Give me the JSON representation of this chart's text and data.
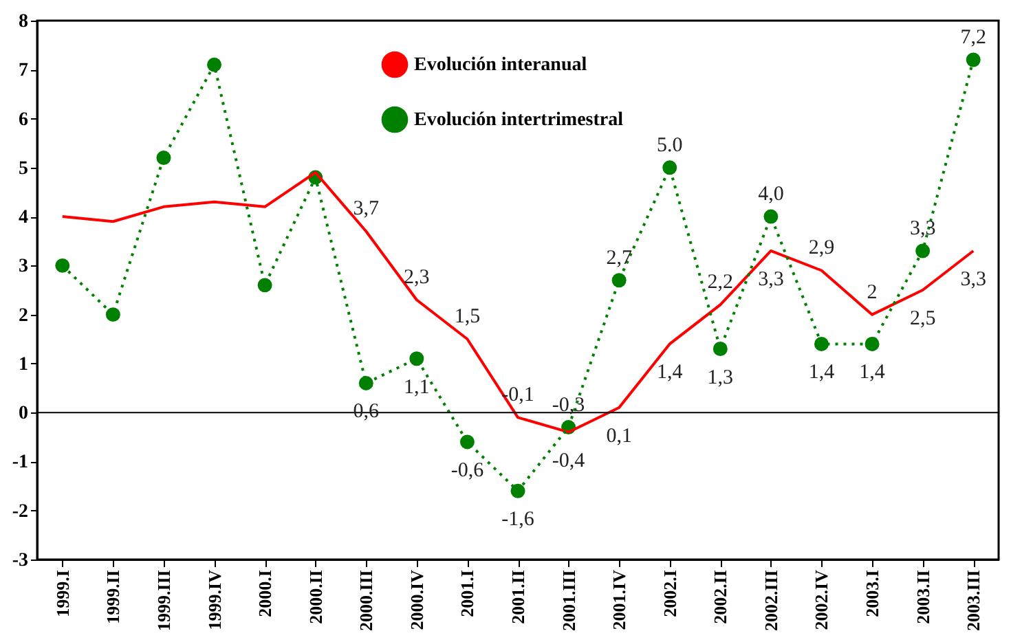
{
  "chart_data": {
    "type": "line",
    "categories": [
      "1999.I",
      "1999.II",
      "1999.III",
      "1999.IV",
      "2000.I",
      "2000.II",
      "2000.III",
      "2000.IV",
      "2001.I",
      "2001.II",
      "2001.III",
      "2001.IV",
      "2002.I",
      "2002.II",
      "2002.III",
      "2002.IV",
      "2003.I",
      "2003.II",
      "2003.III"
    ],
    "series": [
      {
        "name": "Evolución interanual",
        "color": "#ff0000",
        "line_style": "solid",
        "marker": "none",
        "values": [
          4.0,
          3.9,
          4.2,
          4.3,
          4.2,
          4.9,
          3.7,
          2.3,
          1.5,
          -0.1,
          -0.4,
          0.1,
          1.4,
          2.2,
          3.3,
          2.9,
          2.0,
          2.5,
          3.3
        ],
        "value_labels": [
          null,
          null,
          null,
          null,
          null,
          null,
          "3,7",
          "2,3",
          "1,5",
          "-0,1",
          "-0,4",
          "0,1",
          "1,4",
          "2,2",
          "3,3",
          "2,9",
          "2",
          "2,5",
          "3,3"
        ]
      },
      {
        "name": "Evolución intertrimestral",
        "color": "#008000",
        "line_style": "dotted",
        "marker": "circle",
        "values": [
          3.0,
          2.0,
          5.2,
          7.1,
          2.6,
          4.8,
          0.6,
          1.1,
          -0.6,
          -1.6,
          -0.3,
          2.7,
          5.0,
          1.3,
          4.0,
          1.4,
          1.4,
          3.3,
          7.2
        ],
        "value_labels": [
          null,
          null,
          null,
          null,
          null,
          null,
          "0,6",
          "1,1",
          "-0,6",
          "-1,6",
          "-0,3",
          "2,7",
          "5.0",
          "1,3",
          "4,0",
          "1,4",
          "1,4",
          "3,3",
          "7,2"
        ]
      }
    ],
    "ylim": [
      -3,
      8
    ],
    "yticks": [
      -3,
      -2,
      -1,
      0,
      1,
      2,
      3,
      4,
      5,
      6,
      7,
      8
    ],
    "ref_lines": [
      {
        "axis": "y",
        "value": 0
      }
    ],
    "grid": false,
    "legend": "top"
  }
}
